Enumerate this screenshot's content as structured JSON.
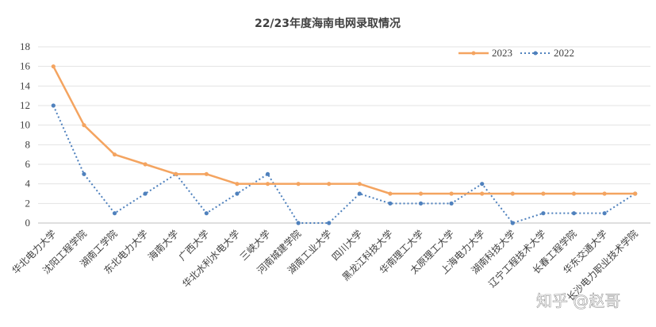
{
  "chart_data": {
    "type": "line",
    "title": "22/23年度海南电网录取情况",
    "categories": [
      "华北电力大学",
      "沈阳工程学院",
      "湖南工学院",
      "东北电力大学",
      "海南大学",
      "广西大学",
      "华北水利水电大学",
      "三峡大学",
      "河南城建学院",
      "湖南工业大学",
      "四川大学",
      "黑龙江科技大学",
      "华南理工大学",
      "太原理工大学",
      "上海电力大学",
      "湖南科技大学",
      "辽宁工程技术大学",
      "长春工程学院",
      "华东交通大学",
      "长沙电力职业技术学院"
    ],
    "series": [
      {
        "name": "2023",
        "color": "#f4a460",
        "style": "solid",
        "values": [
          16,
          10,
          7,
          6,
          5,
          5,
          4,
          4,
          4,
          4,
          4,
          3,
          3,
          3,
          3,
          3,
          3,
          3,
          3,
          3
        ]
      },
      {
        "name": "2022",
        "color": "#4f81bd",
        "style": "dotted",
        "values": [
          12,
          5,
          1,
          3,
          5,
          1,
          3,
          5,
          0,
          0,
          3,
          2,
          2,
          2,
          4,
          0,
          1,
          1,
          1,
          3
        ]
      }
    ],
    "ylim": [
      0,
      18
    ],
    "yticks": [
      0,
      2,
      4,
      6,
      8,
      10,
      12,
      14,
      16,
      18
    ],
    "grid": true,
    "legend": "top-right"
  },
  "watermark": "知乎 @赵哥"
}
